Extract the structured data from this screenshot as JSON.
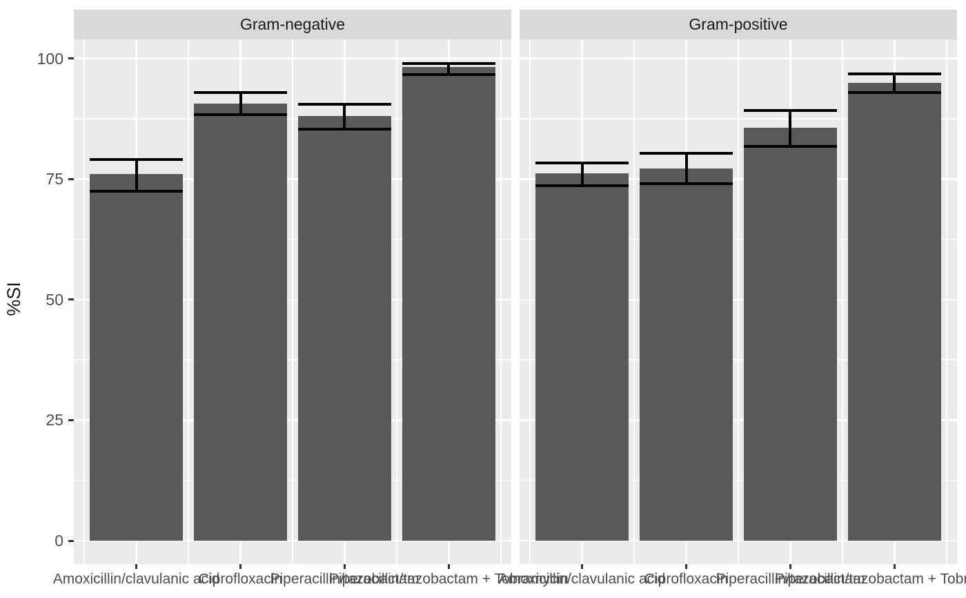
{
  "chart_data": {
    "type": "bar",
    "title": "",
    "xlabel": "",
    "ylabel": "%SI",
    "ylim": [
      -4.9,
      104.1
    ],
    "yticks": [
      0,
      25,
      50,
      75,
      100
    ],
    "y_minor_ticks": [
      12.5,
      37.5,
      62.5,
      87.5
    ],
    "grid": true,
    "legend": "none",
    "facet_row": "top",
    "categories": [
      "Amoxicillin/clavulanic acid",
      "Ciprofloxacin",
      "Piperacillin/tazobactam",
      "Piperacillin/tazobactam + Tobramycin"
    ],
    "facets": [
      {
        "label": "Gram-negative",
        "values": [
          76.0,
          90.7,
          88.0,
          98.3
        ],
        "ci_low": [
          72.5,
          88.4,
          85.3,
          96.7
        ],
        "ci_high": [
          79.0,
          92.9,
          90.5,
          98.9
        ]
      },
      {
        "label": "Gram-positive",
        "values": [
          76.2,
          77.2,
          85.7,
          95.0
        ],
        "ci_low": [
          73.6,
          74.1,
          81.7,
          92.9
        ],
        "ci_high": [
          78.4,
          80.3,
          89.2,
          96.8
        ]
      }
    ],
    "style": {
      "bar_fill": "#595959",
      "panel_bg": "#EBEBEB",
      "strip_bg": "#D9D9D9",
      "grid_color": "#FFFFFF",
      "errorbar_color": "#000000",
      "axis_text_color": "#4D4D4D",
      "strip_text_color": "#1A1A1A",
      "tick_color": "#333333",
      "plot_bg": "#FFFFFF"
    }
  }
}
